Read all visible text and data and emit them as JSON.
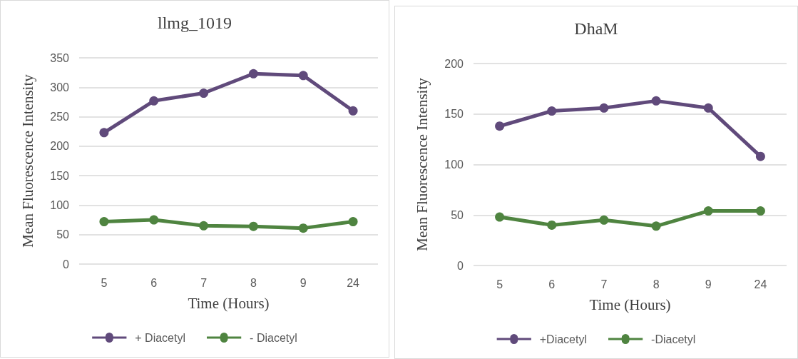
{
  "chart_data": [
    {
      "type": "line",
      "title": "llmg_1019",
      "xlabel": "Time (Hours)",
      "ylabel": "Mean Fluorescence Intensity",
      "categories": [
        "5",
        "6",
        "7",
        "8",
        "9",
        "24"
      ],
      "series": [
        {
          "name": "+ Diacetyl",
          "color": "#604a7b",
          "values": [
            223,
            277,
            290,
            323,
            320,
            260
          ]
        },
        {
          "name": "- Diacetyl",
          "color": "#4f8440",
          "values": [
            72,
            75,
            65,
            64,
            61,
            72
          ]
        }
      ],
      "ylim": [
        0,
        350
      ],
      "yticks": [
        0,
        50,
        100,
        150,
        200,
        250,
        300,
        350
      ],
      "grid": "y",
      "legend": "bottom",
      "marker": "circle",
      "line_style": "solid"
    },
    {
      "type": "line",
      "title": "DhaM",
      "xlabel": "Time (Hours)",
      "ylabel": "Mean Fluorescence Intensity",
      "categories": [
        "5",
        "6",
        "7",
        "8",
        "9",
        "24"
      ],
      "series": [
        {
          "name": "+Diacetyl",
          "color": "#604a7b",
          "values": [
            138,
            153,
            156,
            163,
            156,
            108
          ]
        },
        {
          "name": "-Diacetyl",
          "color": "#4f8440",
          "values": [
            48,
            40,
            45,
            39,
            54,
            54
          ]
        }
      ],
      "ylim": [
        0,
        200
      ],
      "yticks": [
        0,
        50,
        100,
        150,
        200
      ],
      "grid": "y",
      "legend": "bottom",
      "marker": "circle",
      "line_style": "solid"
    }
  ]
}
